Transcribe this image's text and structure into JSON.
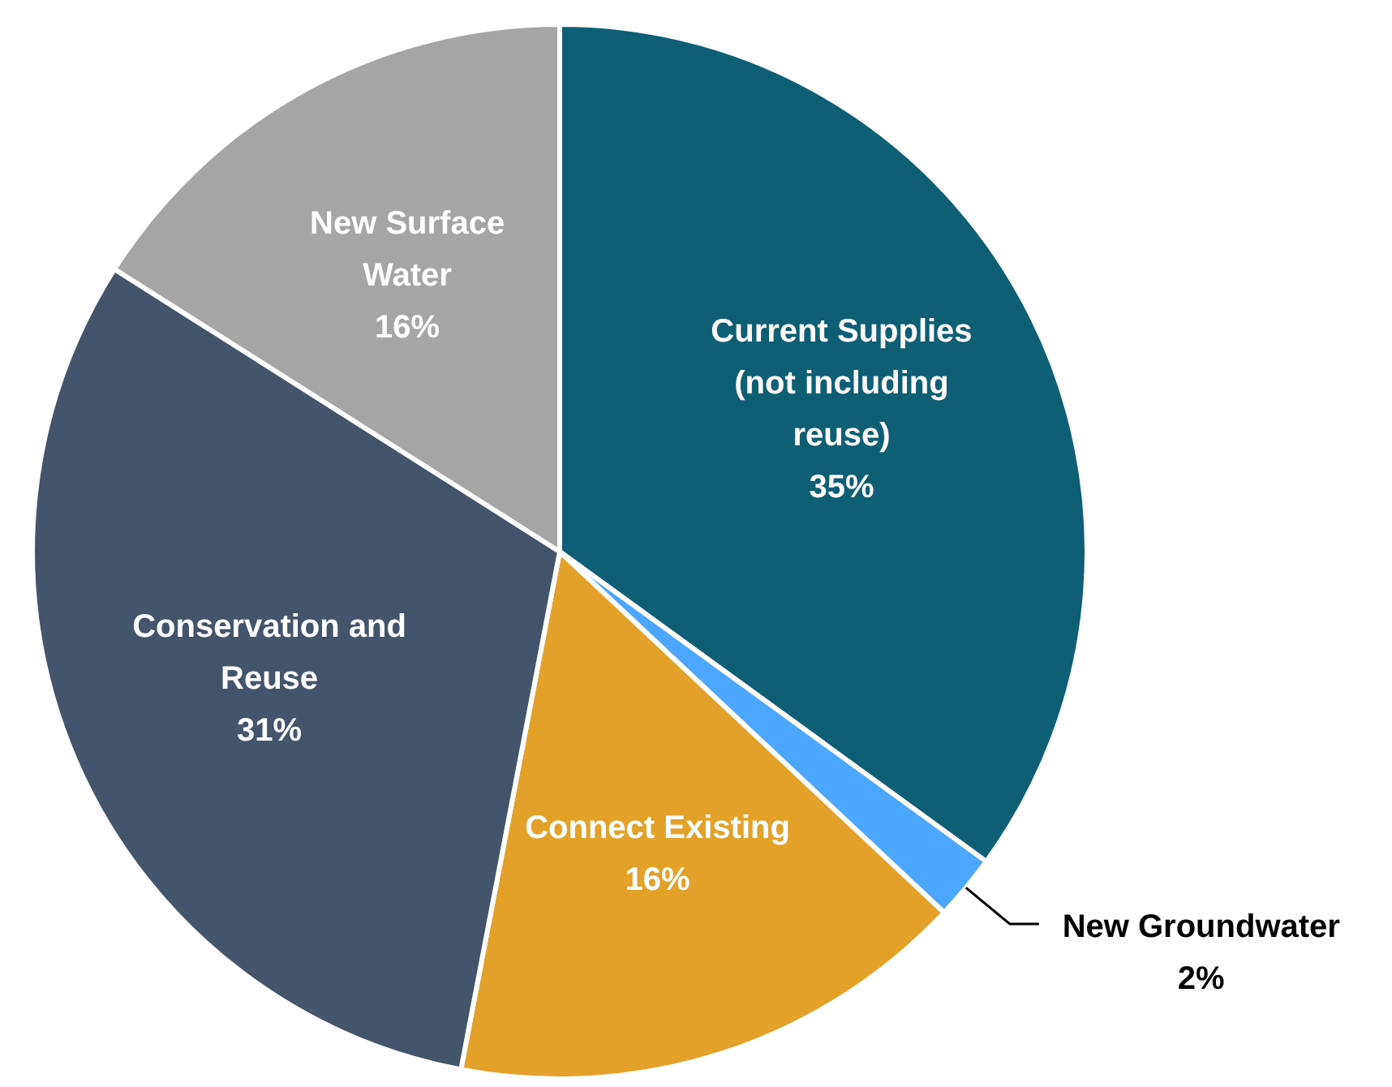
{
  "chart_data": {
    "type": "pie",
    "categories": [
      "Current Supplies (not including reuse)",
      "New Groundwater",
      "Connect Existing",
      "Conservation and Reuse",
      "New Surface Water"
    ],
    "values": [
      35,
      2,
      16,
      31,
      16
    ],
    "colors": [
      "#0e5f75",
      "#4da6ff",
      "#e3a12a",
      "#44546a",
      "#a5a5a5"
    ],
    "value_labels": [
      "35%",
      "2%",
      "16%",
      "31%",
      "16%"
    ],
    "legend": false
  }
}
